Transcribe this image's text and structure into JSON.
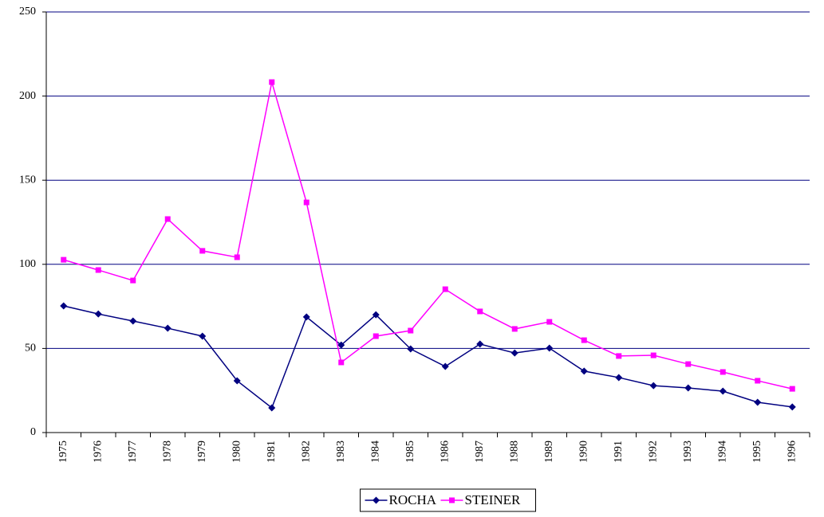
{
  "chart_data": {
    "type": "line",
    "categories": [
      "1975",
      "1976",
      "1977",
      "1978",
      "1979",
      "1980",
      "1981",
      "1982",
      "1983",
      "1984",
      "1985",
      "1986",
      "1987",
      "1988",
      "1989",
      "1990",
      "1991",
      "1992",
      "1993",
      "1994",
      "1995",
      "1996"
    ],
    "series": [
      {
        "name": "ROCHA",
        "color": "#000080",
        "marker": "diamond",
        "values": [
          75.3,
          70.5,
          66.3,
          62,
          57.3,
          30.8,
          14.7,
          68.7,
          52,
          70,
          49.7,
          39.3,
          52.6,
          47.3,
          50.2,
          36.5,
          32.7,
          27.9,
          26.5,
          24.6,
          18,
          15.2
        ]
      },
      {
        "name": "STEINER",
        "color": "#ff00ff",
        "marker": "square",
        "values": [
          102.7,
          96.6,
          90.4,
          126.9,
          108,
          104.2,
          208.3,
          136.8,
          41.7,
          57.3,
          60.6,
          85.2,
          72,
          61.6,
          65.8,
          54.9,
          45.5,
          45.9,
          40.7,
          36,
          30.8,
          26
        ]
      }
    ],
    "ylim": [
      0,
      250
    ],
    "yticks": [
      0,
      50,
      100,
      150,
      200,
      250
    ],
    "grid": true,
    "legend": "bottom"
  }
}
